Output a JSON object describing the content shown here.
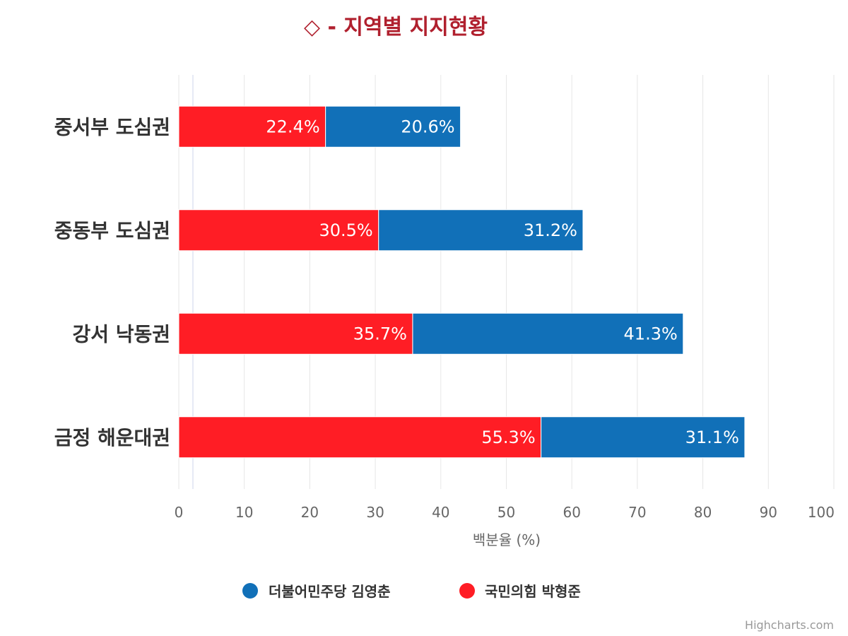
{
  "chart_data": {
    "type": "bar",
    "orientation": "horizontal",
    "stacking": "normal",
    "title": "◇ - 지역별 지지현황",
    "categories": [
      "중서부 도심권",
      "중동부 도심권",
      "강서 낙동권",
      "금정 해운대권"
    ],
    "series": [
      {
        "name": "국민의힘 박형준",
        "color": "#ff1d25",
        "values": [
          22.4,
          30.5,
          35.7,
          55.3
        ]
      },
      {
        "name": "더불어민주당 김영춘",
        "color": "#1170b8",
        "values": [
          20.6,
          31.2,
          41.3,
          31.1
        ]
      }
    ],
    "legend_order": [
      "더불어민주당 김영춘",
      "국민의힘 박형준"
    ],
    "xlabel": "백분율 (%)",
    "xlim": [
      0,
      100
    ],
    "xticks": [
      0,
      10,
      20,
      30,
      40,
      50,
      60,
      70,
      80,
      90,
      100
    ],
    "data_label_suffix": "%",
    "grid": true,
    "legend_position": "bottom-center",
    "credits": "Highcharts.com"
  }
}
